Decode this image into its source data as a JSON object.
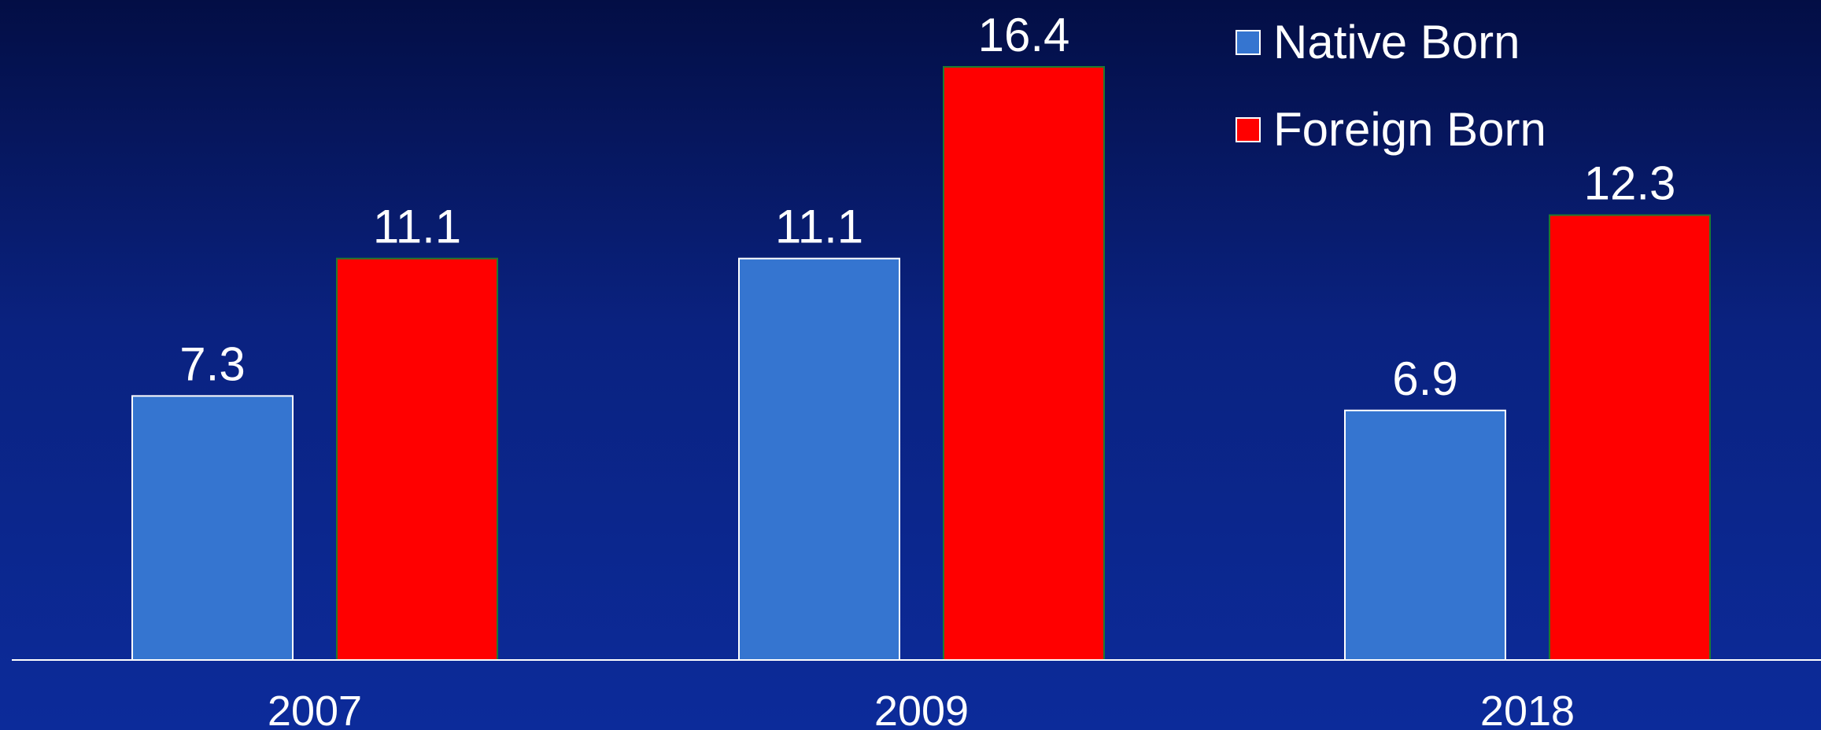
{
  "chart_data": {
    "type": "bar",
    "categories": [
      "2007",
      "2009",
      "2018"
    ],
    "series": [
      {
        "name": "Native Born",
        "values": [
          7.3,
          11.1,
          6.9
        ],
        "color": "#3575d0",
        "value_labels": [
          "7.3",
          "11.1",
          "6.9"
        ]
      },
      {
        "name": "Foreign Born",
        "values": [
          11.1,
          16.4,
          12.3
        ],
        "color": "#ff0000",
        "value_labels": [
          "11.1",
          "16.4",
          "12.3"
        ]
      }
    ],
    "legend_position": "top-right",
    "grid": false,
    "ylim": [
      0,
      16.4
    ]
  },
  "colors": {
    "text": "#ffffff",
    "axis_line": "#ffffff",
    "native_border": "#ffffff",
    "foreign_border": "#1f7a2e"
  }
}
